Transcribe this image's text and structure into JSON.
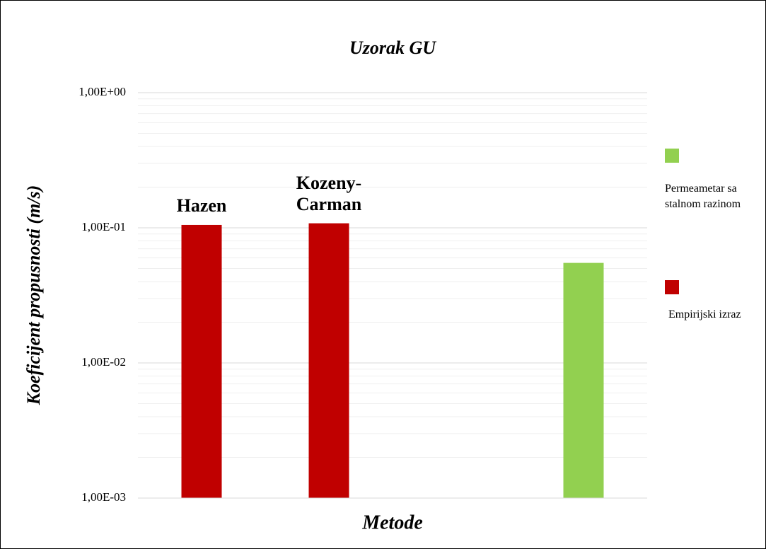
{
  "chart_data": {
    "type": "bar",
    "title": "Uzorak GU",
    "x_label": "Metode",
    "y_label": "Koeficijent propusnosti (m/s)",
    "categories": [
      "Hazen",
      "Kozeny-Carman",
      null,
      null
    ],
    "series": [
      {
        "name": "Permeametar sa stalnom razinom",
        "color": "#92d050",
        "values": [
          null,
          null,
          null,
          0.055
        ]
      },
      {
        "name": "Empirijski izraz",
        "color": "#c00000",
        "values": [
          0.105,
          0.108,
          null,
          null
        ]
      }
    ],
    "log_scale": true,
    "ylim": [
      0.001,
      1
    ],
    "yticks": [
      {
        "value": 0.001,
        "label": "1,00E-03"
      },
      {
        "value": 0.01,
        "label": "1,00E-02"
      },
      {
        "value": 0.1,
        "label": "1,00E-01"
      },
      {
        "value": 1,
        "label": "1,00E+00"
      }
    ],
    "grid": true,
    "minor_grid": true,
    "legend": "right"
  }
}
